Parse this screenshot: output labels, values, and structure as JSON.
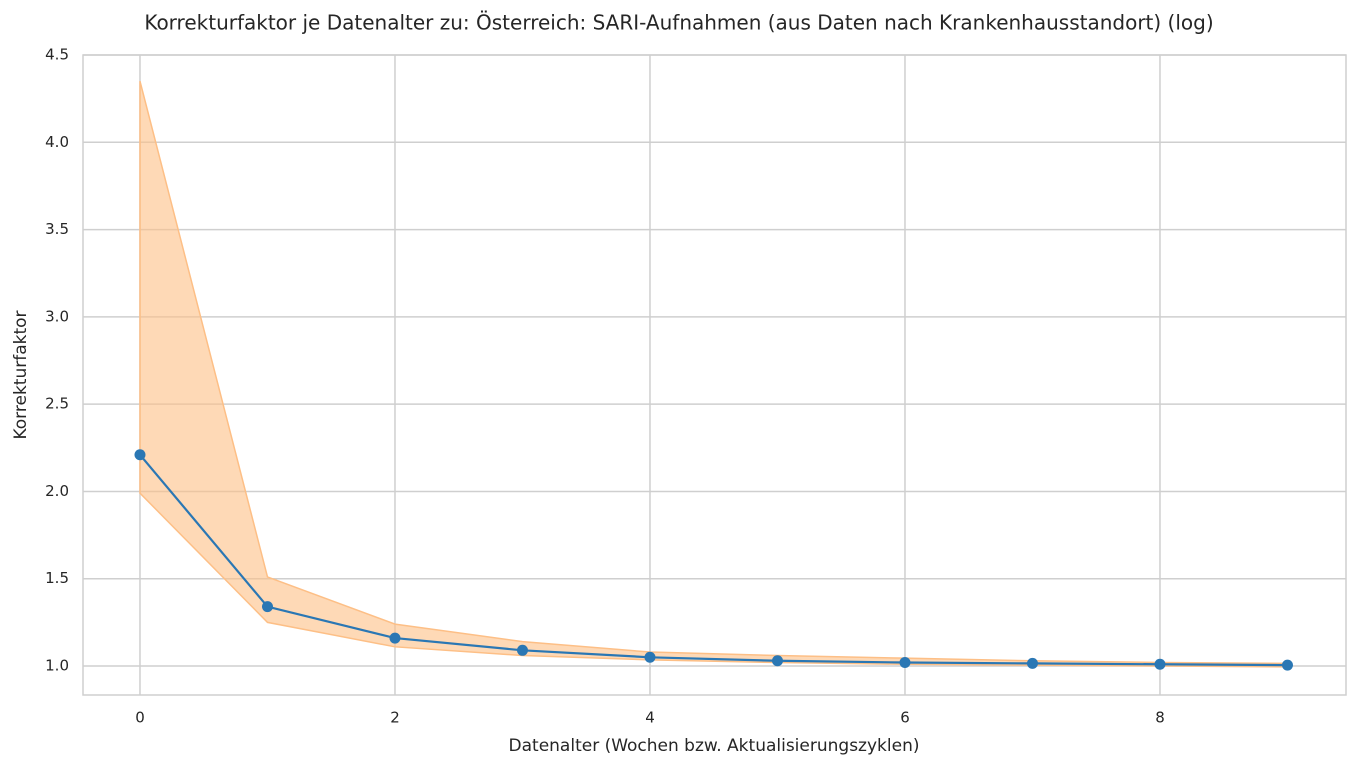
{
  "chart_data": {
    "type": "line",
    "title": "Korrekturfaktor je Datenalter zu: Österreich: SARI-Aufnahmen (aus Daten nach Krankenhausstandort) (log)",
    "xlabel": "Datenalter (Wochen bzw. Aktualisierungszyklen)",
    "ylabel": "Korrekturfaktor",
    "x": [
      0,
      1,
      2,
      3,
      4,
      5,
      6,
      7,
      8,
      9
    ],
    "values": [
      2.21,
      1.34,
      1.16,
      1.09,
      1.05,
      1.03,
      1.02,
      1.015,
      1.01,
      1.005
    ],
    "upper": [
      4.35,
      1.51,
      1.24,
      1.14,
      1.08,
      1.06,
      1.045,
      1.03,
      1.02,
      1.015
    ],
    "lower": [
      1.99,
      1.25,
      1.11,
      1.06,
      1.035,
      1.02,
      1.01,
      1.005,
      1.0,
      0.995
    ],
    "color": "#2a77b4",
    "band_color": "#fdbf86",
    "xlim": [
      -0.447,
      9.459
    ],
    "xticks": [
      0,
      2,
      4,
      6,
      8
    ],
    "ylim": [
      0.834,
      4.5
    ],
    "yticks": [
      {
        "value": 1,
        "label": "1.0"
      },
      1.5,
      {
        "value": 2,
        "label": "2.0"
      },
      2.5,
      {
        "value": 3,
        "label": "3.0"
      },
      3.5,
      {
        "value": 4,
        "label": "4.0"
      },
      4.5
    ],
    "grid": true
  }
}
